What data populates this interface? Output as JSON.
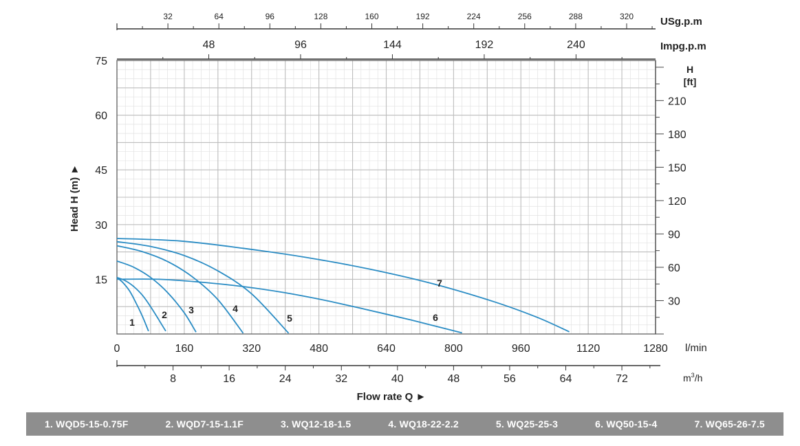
{
  "chart_data": {
    "type": "line",
    "title": "",
    "xlabel": "Flow rate Q ►",
    "ylabel": "Head H (m) ►",
    "x_unit": "l/min",
    "xlim": [
      0,
      1280
    ],
    "ylim": [
      0,
      75
    ],
    "x_ticks": [
      0,
      160,
      320,
      480,
      640,
      800,
      960,
      1120,
      1280
    ],
    "y_ticks": [
      15,
      30,
      45,
      60,
      75
    ],
    "grid": true,
    "secondary_axes": {
      "m3h": {
        "unit_base": "m",
        "unit_sup": "3",
        "unit_tail": "/h",
        "ticks": [
          8,
          16,
          24,
          32,
          40,
          48,
          56,
          64,
          72
        ]
      },
      "usgpm": {
        "unit": "USg.p.m",
        "ticks": [
          32,
          64,
          96,
          128,
          160,
          192,
          224,
          256,
          288,
          320
        ]
      },
      "impgpm": {
        "unit": "Impg.p.m",
        "ticks": [
          48,
          96,
          144,
          192,
          240
        ]
      },
      "feet": {
        "unit_line1": "H",
        "unit_line2": "[ft]",
        "ticks": [
          30,
          60,
          90,
          120,
          150,
          180,
          210
        ]
      }
    },
    "series": [
      {
        "label": "1",
        "name": "1. WQD5-15-0.75F",
        "x": [
          0,
          15,
          30,
          45,
          60,
          75
        ],
        "y": [
          15.5,
          14.0,
          11.8,
          8.6,
          5.0,
          0.8
        ]
      },
      {
        "label": "2",
        "name": "2. WQD7-15-1.1F",
        "x": [
          0,
          20,
          40,
          60,
          80,
          100,
          116
        ],
        "y": [
          15.5,
          14.6,
          13.0,
          10.7,
          7.5,
          3.8,
          0.8
        ]
      },
      {
        "label": "3",
        "name": "3. WQ12-18-1.5",
        "x": [
          0,
          40,
          80,
          120,
          160,
          188
        ],
        "y": [
          20.0,
          18.3,
          15.5,
          11.4,
          5.8,
          0.5
        ]
      },
      {
        "label": "4",
        "name": "4. WQ18-22-2.2",
        "x": [
          0,
          60,
          120,
          180,
          240,
          300
        ],
        "y": [
          24.2,
          22.6,
          19.9,
          15.6,
          9.4,
          0.2
        ]
      },
      {
        "label": "5",
        "name": "5. WQ25-25-3",
        "x": [
          0,
          80,
          160,
          240,
          320,
          408
        ],
        "y": [
          25.3,
          24.0,
          21.5,
          17.3,
          11.0,
          0.2
        ]
      },
      {
        "label": "6",
        "name": "6. WQ50-15-4",
        "x": [
          0,
          100,
          200,
          300,
          400,
          500,
          600,
          700,
          820
        ],
        "y": [
          15.0,
          15.0,
          14.2,
          13.0,
          11.3,
          9.1,
          6.5,
          3.8,
          0.3
        ]
      },
      {
        "label": "7",
        "name": "7. WQ65-26-7.5",
        "x": [
          0,
          150,
          300,
          450,
          600,
          750,
          900,
          1000,
          1075
        ],
        "y": [
          26.2,
          25.5,
          23.5,
          21.0,
          17.8,
          13.8,
          8.7,
          4.5,
          0.6
        ]
      }
    ]
  },
  "legend": [
    "1. WQD5-15-0.75F",
    "2. WQD7-15-1.1F",
    "3. WQ12-18-1.5",
    "4. WQ18-22-2.2",
    "5. WQ25-25-3",
    "6. WQ50-15-4",
    "7. WQ65-26-7.5"
  ],
  "colors": {
    "curve": "#2a8cc4",
    "grid_major": "#bdbdbd",
    "grid_minor": "#e2e2e2",
    "legend_bg": "#8e8e8e"
  }
}
